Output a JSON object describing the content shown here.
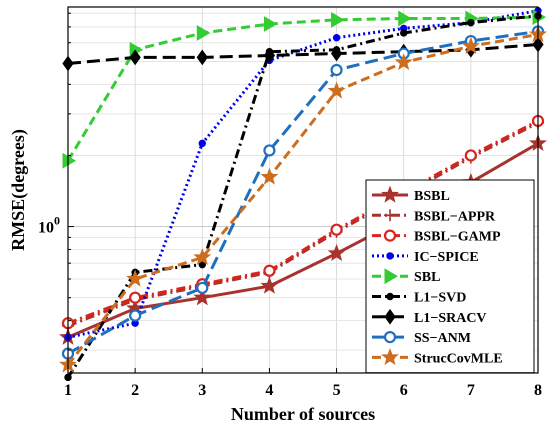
{
  "chart_data": {
    "type": "line",
    "xlabel": "Number of sources",
    "ylabel": "RMSE(degrees)",
    "x": [
      1,
      2,
      3,
      4,
      5,
      6,
      7,
      8
    ],
    "xlim": [
      1,
      8
    ],
    "xticks": [
      "1",
      "2",
      "3",
      "4",
      "5",
      "6",
      "7",
      "8"
    ],
    "yscale": "log",
    "ylim": [
      0.24,
      8.5
    ],
    "yticks": [
      {
        "value": 1,
        "base": "10",
        "exp": "0"
      }
    ],
    "grid": true,
    "legend_position": "bottom-right",
    "series": [
      {
        "name": "BSBL",
        "color": "#a8322d",
        "dash": "solid",
        "marker": "star",
        "values": [
          0.34,
          0.45,
          0.5,
          0.56,
          0.77,
          1.08,
          1.54,
          2.25
        ]
      },
      {
        "name": "BSBL−APPR",
        "color": "#a8322d",
        "dash": "dashdot",
        "marker": "plus",
        "values": [
          0.38,
          0.49,
          0.56,
          0.64,
          0.95,
          1.36,
          1.96,
          2.75
        ]
      },
      {
        "name": "BSBL−GAMP",
        "color": "#d9241c",
        "dash": "dashdot",
        "marker": "circle",
        "values": [
          0.39,
          0.5,
          0.57,
          0.65,
          0.97,
          1.39,
          2.0,
          2.8
        ]
      },
      {
        "name": "IC−SPICE",
        "color": "#0000ee",
        "dash": "dotted",
        "marker": "dot",
        "values": [
          0.34,
          0.39,
          2.25,
          5.05,
          6.3,
          6.9,
          7.3,
          8.2
        ]
      },
      {
        "name": "SBL",
        "color": "#33cc33",
        "dash": "dashed",
        "marker": "triangle-right",
        "values": [
          1.9,
          5.6,
          6.6,
          7.2,
          7.5,
          7.6,
          7.6,
          7.7
        ]
      },
      {
        "name": "L1−SVD",
        "color": "#000000",
        "dash": "dashdot",
        "marker": "dot",
        "values": [
          0.23,
          0.64,
          0.69,
          5.5,
          5.6,
          6.6,
          7.3,
          7.8
        ]
      },
      {
        "name": "L1−SRACV",
        "color": "#000000",
        "dash": "longdash",
        "marker": "diamond",
        "values": [
          4.9,
          5.2,
          5.2,
          5.3,
          5.4,
          5.5,
          5.6,
          5.9
        ]
      },
      {
        "name": "SS−ANM",
        "color": "#1f6fbf",
        "dash": "longdash",
        "marker": "circle",
        "values": [
          0.29,
          0.42,
          0.55,
          2.1,
          4.6,
          5.4,
          6.1,
          6.7
        ]
      },
      {
        "name": "StrucCovMLE",
        "color": "#cc6d1f",
        "dash": "dashed",
        "marker": "star",
        "values": [
          0.26,
          0.6,
          0.74,
          1.62,
          3.75,
          4.95,
          5.8,
          6.5
        ]
      }
    ]
  }
}
